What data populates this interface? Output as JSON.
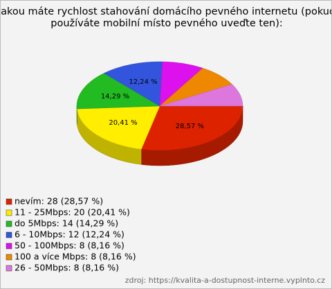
{
  "chart_data": {
    "type": "pie",
    "title": [
      "Jakou máte rychlost stahování domácího pevného internetu (pokud",
      "používáte mobilní místo pevného uveďte ten):"
    ],
    "categories": [
      "nevím: 28 (28,57 %)",
      "11 - 25Mbps: 20 (20,41 %)",
      "do 5Mbps: 14 (14,29 %)",
      "6 - 10Mbps: 12 (12,24 %)",
      "50 - 100Mbps: 8 (8,16 %)",
      "100 a více Mbps: 8 (8,16 %)",
      "26 - 50Mbps: 8 (8,16 %)"
    ],
    "values": [
      28.57,
      20.41,
      14.29,
      12.24,
      8.16,
      8.16,
      8.16
    ],
    "value_labels": [
      "28,57 %",
      "20,41 %",
      "14,29 %",
      "12,24 %",
      null,
      null,
      null
    ],
    "colors": [
      "#dd2200",
      "#ffee00",
      "#22bb22",
      "#3355dd",
      "#dd11ee",
      "#ee8800",
      "#dd77dd"
    ],
    "source": "zdroj: https://kvalita-a-dostupnost-interne.vyplnto.cz"
  }
}
